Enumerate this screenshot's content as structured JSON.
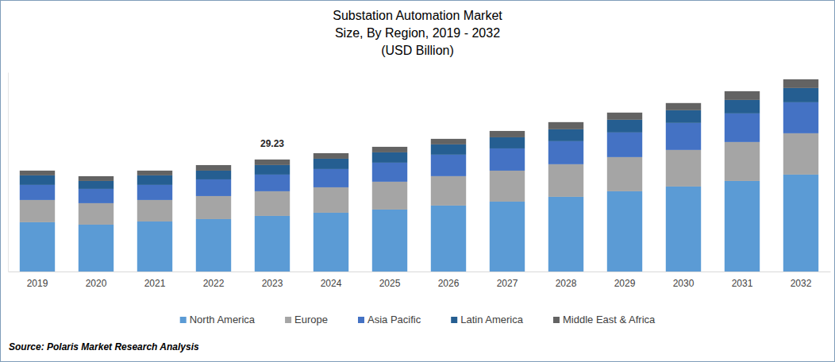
{
  "chart_data": {
    "type": "bar",
    "title": "Substation Automation Market\nSize, By Region, 2019 - 2032\n(USD Billion)",
    "source": "Source: Polaris Market Research Analysis",
    "stacked": true,
    "legend": "bottom",
    "tick_labels": "x",
    "grid": false,
    "categories": [
      "2019",
      "2020",
      "2021",
      "2022",
      "2023",
      "2024",
      "2025",
      "2026",
      "2027",
      "2028",
      "2029",
      "2030",
      "2031",
      "2032"
    ],
    "ylim": [
      0,
      52
    ],
    "series": [
      {
        "name": "North America",
        "color": "#5B9BD5",
        "values": [
          12.86,
          12.23,
          13.06,
          13.68,
          14.51,
          15.34,
          16.17,
          17.21,
          18.24,
          19.49,
          20.94,
          22.18,
          23.63,
          25.29
        ]
      },
      {
        "name": "Europe",
        "color": "#A5A5A5",
        "values": [
          5.8,
          5.6,
          5.6,
          6.01,
          6.43,
          6.63,
          7.26,
          7.67,
          8.08,
          8.5,
          8.91,
          9.54,
          10.16,
          10.78
        ]
      },
      {
        "name": "Asia Pacific",
        "color": "#4472C4",
        "values": [
          3.94,
          3.73,
          3.94,
          4.35,
          4.35,
          4.77,
          4.97,
          5.6,
          5.8,
          6.01,
          6.43,
          7.05,
          7.46,
          8.08
        ]
      },
      {
        "name": "Latin America",
        "color": "#255E91",
        "values": [
          2.49,
          2.07,
          2.49,
          2.28,
          2.49,
          2.69,
          2.69,
          2.69,
          2.9,
          3.11,
          3.32,
          3.32,
          3.52,
          3.73
        ]
      },
      {
        "name": "Middle East & Africa",
        "color": "#636363",
        "values": [
          1.24,
          1.24,
          1.24,
          1.45,
          1.45,
          1.45,
          1.45,
          1.45,
          1.66,
          1.87,
          1.87,
          1.87,
          2.28,
          2.28
        ]
      }
    ],
    "annotations": [
      {
        "text": "29.23",
        "category": "2023",
        "value": 29.23
      }
    ]
  }
}
